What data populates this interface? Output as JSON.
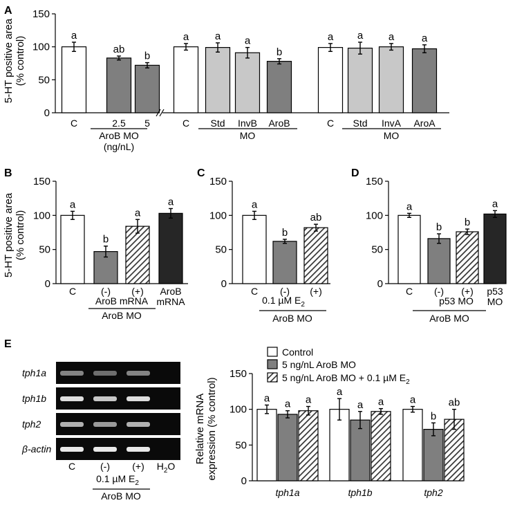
{
  "panel_labels": {
    "A": "A",
    "B": "B",
    "C": "C",
    "D": "D",
    "E": "E"
  },
  "colors": {
    "white": "#ffffff",
    "light_gray": "#c8c8c8",
    "mid_gray": "#7f7f7f",
    "dark": "#262626",
    "gel_bg": "#0a0a0a",
    "band": "#e8e8e8"
  },
  "chart_data": [
    {
      "id": "A",
      "type": "bar",
      "ylabel_line1": "5-HT positive area",
      "ylabel_line2": "(% control)",
      "ylim": [
        0,
        150
      ],
      "yticks": [
        "0",
        "50",
        "100",
        "150"
      ],
      "axis_break": true,
      "groups": [
        {
          "bars": [
            {
              "label": "C",
              "value": 100,
              "err": 7,
              "letter": "a",
              "fill": "white"
            },
            {
              "label": "2.5",
              "value": 83,
              "err": 3,
              "letter": "ab",
              "fill": "mid_gray"
            },
            {
              "label": "5",
              "value": 72,
              "err": 4,
              "letter": "b",
              "fill": "mid_gray"
            }
          ],
          "group_label_line1": "AroB MO",
          "group_label_line2": "(ng/nL)"
        },
        {
          "bars": [
            {
              "label": "C",
              "value": 100,
              "err": 5,
              "letter": "a",
              "fill": "white"
            },
            {
              "label": "Std",
              "value": 99,
              "err": 7,
              "letter": "a",
              "fill": "light_gray"
            },
            {
              "label": "InvB",
              "value": 91,
              "err": 8,
              "letter": "a",
              "fill": "light_gray"
            },
            {
              "label": "AroB",
              "value": 78,
              "err": 4,
              "letter": "b",
              "fill": "mid_gray"
            }
          ],
          "group_label_line1": "MO"
        },
        {
          "bars": [
            {
              "label": "C",
              "value": 99,
              "err": 6,
              "letter": "a",
              "fill": "white"
            },
            {
              "label": "Std",
              "value": 98,
              "err": 9,
              "letter": "a",
              "fill": "light_gray"
            },
            {
              "label": "InvA",
              "value": 100,
              "err": 5,
              "letter": "a",
              "fill": "light_gray"
            },
            {
              "label": "AroA",
              "value": 97,
              "err": 6,
              "letter": "a",
              "fill": "mid_gray"
            }
          ],
          "group_label_line1": "MO"
        }
      ]
    },
    {
      "id": "B",
      "type": "bar",
      "ylabel_line1": "5-HT positive area",
      "ylabel_line2": "(% control)",
      "ylim": [
        0,
        150
      ],
      "yticks": [
        "0",
        "50",
        "100",
        "150"
      ],
      "bars": [
        {
          "label": "C",
          "value": 100,
          "err": 6,
          "letter": "a",
          "fill": "white"
        },
        {
          "label": "(-)",
          "value": 47,
          "err": 8,
          "letter": "b",
          "fill": "mid_gray"
        },
        {
          "label": "(+)",
          "value": 84,
          "err": 10,
          "letter": "a",
          "fill": "hatch"
        },
        {
          "label": "AroB",
          "label2": "mRNA",
          "value": 103,
          "err": 7,
          "letter": "a",
          "fill": "dark"
        }
      ],
      "sub_label": "AroB mRNA",
      "group_label": "AroB MO"
    },
    {
      "id": "C",
      "type": "bar",
      "ylim": [
        0,
        150
      ],
      "yticks": [
        "0",
        "50",
        "100",
        "150"
      ],
      "bars": [
        {
          "label": "C",
          "value": 100,
          "err": 6,
          "letter": "a",
          "fill": "white"
        },
        {
          "label": "(-)",
          "value": 62,
          "err": 3,
          "letter": "b",
          "fill": "mid_gray"
        },
        {
          "label": "(+)",
          "value": 82,
          "err": 5,
          "letter": "ab",
          "fill": "hatch"
        }
      ],
      "sub_label_main": "0.1 µM E",
      "sub_label_sub": "2",
      "group_label": "AroB MO"
    },
    {
      "id": "D",
      "type": "bar",
      "ylim": [
        0,
        150
      ],
      "yticks": [
        "0",
        "50",
        "100",
        "150"
      ],
      "bars": [
        {
          "label": "C",
          "value": 100,
          "err": 3,
          "letter": "a",
          "fill": "white"
        },
        {
          "label": "(-)",
          "value": 66,
          "err": 7,
          "letter": "b",
          "fill": "mid_gray"
        },
        {
          "label": "(+)",
          "value": 76,
          "err": 4,
          "letter": "b",
          "fill": "hatch"
        },
        {
          "label": "p53",
          "label2": "MO",
          "value": 102,
          "err": 5,
          "letter": "a",
          "fill": "dark"
        }
      ],
      "sub_label": "p53 MO",
      "group_label": "AroB MO"
    },
    {
      "id": "E",
      "type": "bar",
      "ylabel_line1": "Relative mRNA",
      "ylabel_line2": "expression (% control)",
      "ylim": [
        0,
        150
      ],
      "yticks": [
        "0",
        "50",
        "100",
        "150"
      ],
      "legend": [
        {
          "text": "Control",
          "fill": "white"
        },
        {
          "text": "5 ng/nL AroB MO",
          "fill": "mid_gray"
        },
        {
          "text": "5 ng/nL AroB MO + 0.1 µM E",
          "sub": "2",
          "fill": "hatch"
        }
      ],
      "categories": [
        "tph1a",
        "tph1b",
        "tph2"
      ],
      "series": [
        {
          "name": "Control",
          "fill": "white",
          "values": [
            100,
            100,
            100
          ],
          "errs": [
            6,
            15,
            4
          ],
          "letters": [
            "a",
            "a",
            "a"
          ]
        },
        {
          "name": "5 ng/nL AroB MO",
          "fill": "mid_gray",
          "values": [
            93,
            85,
            72
          ],
          "errs": [
            5,
            12,
            9
          ],
          "letters": [
            "a",
            "a",
            "b"
          ]
        },
        {
          "name": "5 ng/nL AroB MO + 0.1 µM E2",
          "fill": "hatch",
          "values": [
            98,
            97,
            86
          ],
          "errs": [
            6,
            4,
            14
          ],
          "letters": [
            "a",
            "a",
            "ab"
          ]
        }
      ]
    }
  ],
  "gel": {
    "rows": [
      "tph1a",
      "tph1b",
      "tph2",
      "β-actin"
    ],
    "lanes": [
      "C",
      "(-)",
      "(+)",
      "H2O"
    ],
    "lane_labels": [
      "C",
      "(-)",
      "(+)"
    ],
    "h2o_main": "H",
    "h2o_sub": "2",
    "h2o_end": "O",
    "treatment_main": "0.1 µM E",
    "treatment_sub": "2",
    "group_label": "AroB MO"
  }
}
